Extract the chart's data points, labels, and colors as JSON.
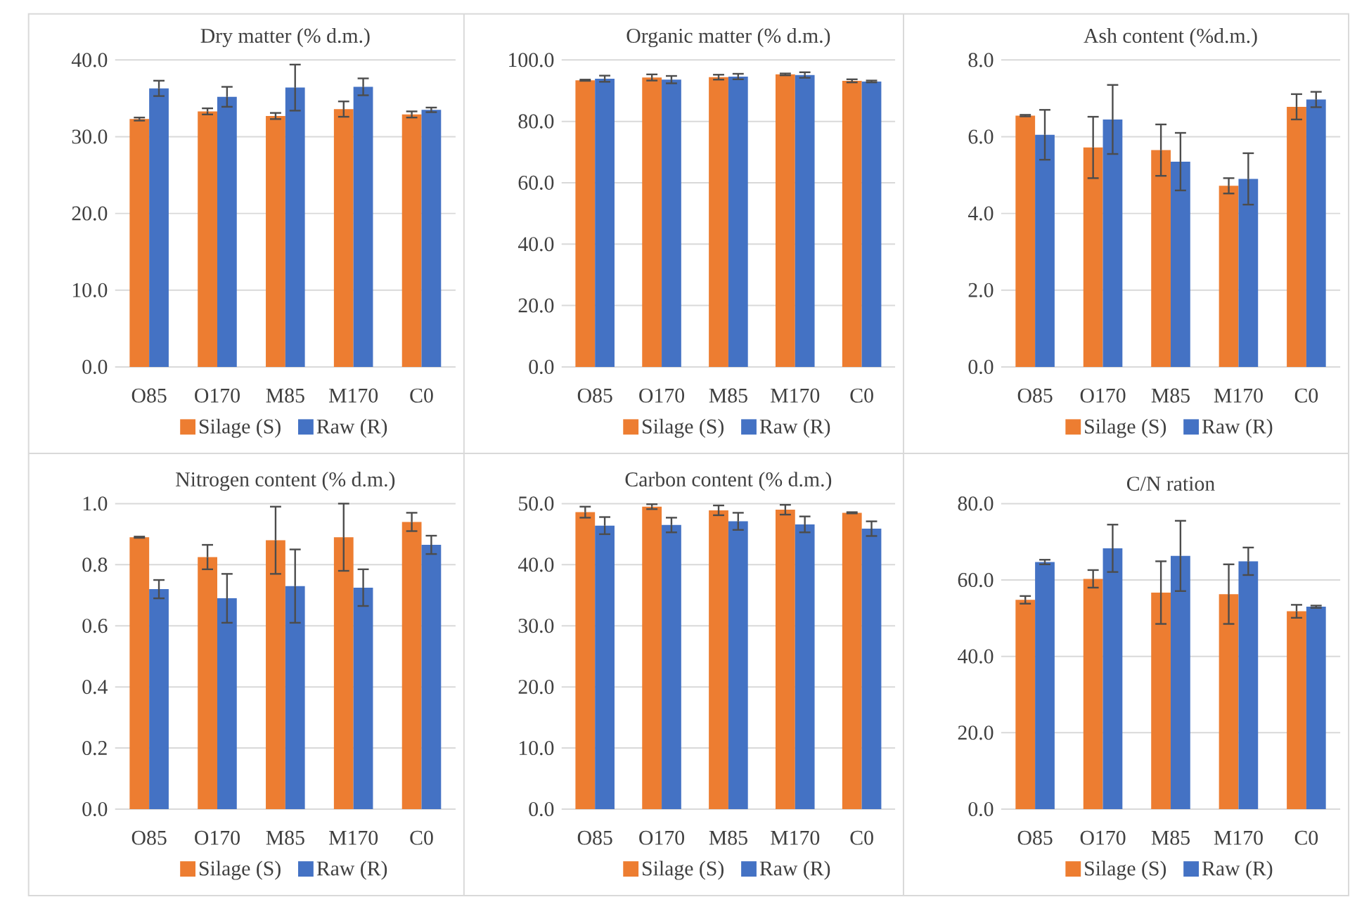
{
  "chart_data": [
    {
      "type": "bar",
      "title": "Dry matter (% d.m.)",
      "categories": [
        "O85",
        "O170",
        "M85",
        "M170",
        "C0"
      ],
      "series": [
        {
          "name": "Silage (S)",
          "color": "#ed7d31",
          "values": [
            32.3,
            33.3,
            32.7,
            33.6,
            32.9
          ],
          "errors": [
            0.2,
            0.4,
            0.4,
            1.0,
            0.4
          ]
        },
        {
          "name": "Raw (R)",
          "color": "#4472c4",
          "values": [
            36.3,
            35.2,
            36.4,
            36.5,
            33.5
          ],
          "errors": [
            1.0,
            1.3,
            3.0,
            1.1,
            0.3
          ]
        }
      ],
      "ylim": [
        0,
        40
      ],
      "yticks": [
        {
          "value": 0,
          "label": "0.0"
        },
        {
          "value": 10,
          "label": "10.0"
        },
        {
          "value": 20,
          "label": "20.0"
        },
        {
          "value": 30,
          "label": "30.0"
        },
        {
          "value": 40,
          "label": "40.0"
        }
      ],
      "grid": "y",
      "legend": "bottom"
    },
    {
      "type": "bar",
      "title": "Organic matter (% d.m.)",
      "categories": [
        "O85",
        "O170",
        "M85",
        "M170",
        "C0"
      ],
      "series": [
        {
          "name": "Silage (S)",
          "color": "#ed7d31",
          "values": [
            93.4,
            94.3,
            94.4,
            95.3,
            93.2
          ],
          "errors": [
            0.2,
            1.0,
            0.8,
            0.3,
            0.5
          ]
        },
        {
          "name": "Raw (R)",
          "color": "#4472c4",
          "values": [
            93.9,
            93.6,
            94.6,
            95.1,
            93.0
          ],
          "errors": [
            1.0,
            1.2,
            0.9,
            0.9,
            0.3
          ]
        }
      ],
      "ylim": [
        0,
        100
      ],
      "yticks": [
        {
          "value": 0,
          "label": "0.0"
        },
        {
          "value": 20,
          "label": "20.0"
        },
        {
          "value": 40,
          "label": "40.0"
        },
        {
          "value": 60,
          "label": "60.0"
        },
        {
          "value": 80,
          "label": "80.0"
        },
        {
          "value": 100,
          "label": "100.0"
        }
      ],
      "grid": "y",
      "legend": "bottom"
    },
    {
      "type": "bar",
      "title": "Ash content (%d.m.)",
      "categories": [
        "O85",
        "O170",
        "M85",
        "M170",
        "C0"
      ],
      "series": [
        {
          "name": "Silage (S)",
          "color": "#ed7d31",
          "values": [
            6.55,
            5.72,
            5.65,
            4.72,
            6.78
          ],
          "errors": [
            0.02,
            0.8,
            0.67,
            0.2,
            0.33
          ]
        },
        {
          "name": "Raw (R)",
          "color": "#4472c4",
          "values": [
            6.05,
            6.45,
            5.35,
            4.9,
            6.97
          ],
          "errors": [
            0.65,
            0.9,
            0.75,
            0.67,
            0.2
          ]
        }
      ],
      "ylim": [
        0,
        8
      ],
      "yticks": [
        {
          "value": 0,
          "label": "0.0"
        },
        {
          "value": 2,
          "label": "2.0"
        },
        {
          "value": 4,
          "label": "4.0"
        },
        {
          "value": 6,
          "label": "6.0"
        },
        {
          "value": 8,
          "label": "8.0"
        }
      ],
      "grid": "y",
      "legend": "bottom"
    },
    {
      "type": "bar",
      "title": "Nitrogen content (% d.m.)",
      "categories": [
        "O85",
        "O170",
        "M85",
        "M170",
        "C0"
      ],
      "series": [
        {
          "name": "Silage (S)",
          "color": "#ed7d31",
          "values": [
            0.89,
            0.825,
            0.88,
            0.89,
            0.94
          ],
          "errors": [
            0.002,
            0.04,
            0.11,
            0.11,
            0.03
          ]
        },
        {
          "name": "Raw (R)",
          "color": "#4472c4",
          "values": [
            0.72,
            0.69,
            0.73,
            0.725,
            0.865
          ],
          "errors": [
            0.03,
            0.08,
            0.12,
            0.06,
            0.03
          ]
        }
      ],
      "ylim": [
        0,
        1
      ],
      "yticks": [
        {
          "value": 0,
          "label": "0.0"
        },
        {
          "value": 0.2,
          "label": "0.2"
        },
        {
          "value": 0.4,
          "label": "0.4"
        },
        {
          "value": 0.6,
          "label": "0.6"
        },
        {
          "value": 0.8,
          "label": "0.8"
        },
        {
          "value": 1,
          "label": "1.0"
        }
      ],
      "grid": "y",
      "legend": "bottom"
    },
    {
      "type": "bar",
      "title": "Carbon content (% d.m.)",
      "categories": [
        "O85",
        "O170",
        "M85",
        "M170",
        "C0"
      ],
      "series": [
        {
          "name": "Silage (S)",
          "color": "#ed7d31",
          "values": [
            48.6,
            49.5,
            48.9,
            49.0,
            48.5
          ],
          "errors": [
            0.9,
            0.4,
            0.8,
            0.8,
            0.1
          ]
        },
        {
          "name": "Raw (R)",
          "color": "#4472c4",
          "values": [
            46.4,
            46.5,
            47.1,
            46.6,
            45.9
          ],
          "errors": [
            1.4,
            1.2,
            1.4,
            1.3,
            1.2
          ]
        }
      ],
      "ylim": [
        0,
        50
      ],
      "yticks": [
        {
          "value": 0,
          "label": "0.0"
        },
        {
          "value": 10,
          "label": "10.0"
        },
        {
          "value": 20,
          "label": "20.0"
        },
        {
          "value": 30,
          "label": "30.0"
        },
        {
          "value": 40,
          "label": "40.0"
        },
        {
          "value": 50,
          "label": "50.0"
        }
      ],
      "grid": "y",
      "legend": "bottom"
    },
    {
      "type": "bar",
      "title": "C/N ration",
      "categories": [
        "O85",
        "O170",
        "M85",
        "M170",
        "C0"
      ],
      "series": [
        {
          "name": "Silage (S)",
          "color": "#ed7d31",
          "values": [
            54.8,
            60.3,
            56.7,
            56.3,
            51.8
          ],
          "errors": [
            1.0,
            2.3,
            8.2,
            7.8,
            1.7
          ]
        },
        {
          "name": "Raw (R)",
          "color": "#4472c4",
          "values": [
            64.7,
            68.3,
            66.3,
            64.9,
            53.0
          ],
          "errors": [
            0.6,
            6.2,
            9.2,
            3.6,
            0.3
          ]
        }
      ],
      "ylim": [
        0,
        80
      ],
      "yticks": [
        {
          "value": 0,
          "label": "0.0"
        },
        {
          "value": 20,
          "label": "20.0"
        },
        {
          "value": 40,
          "label": "40.0"
        },
        {
          "value": 60,
          "label": "60.0"
        },
        {
          "value": 80,
          "label": "80.0"
        }
      ],
      "grid": "y",
      "legend": "bottom"
    }
  ]
}
